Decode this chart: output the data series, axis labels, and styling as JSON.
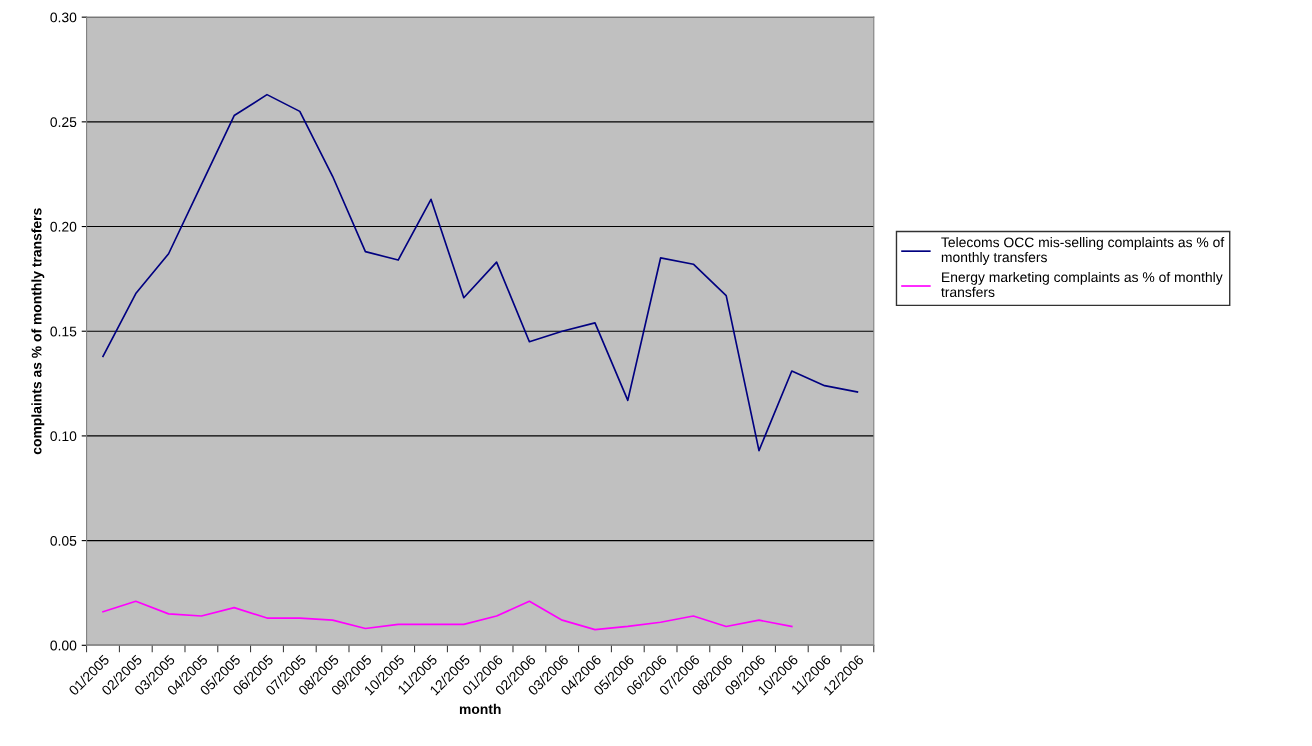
{
  "chart_data": {
    "type": "line",
    "xlabel": "month",
    "ylabel": "complaints as % of monthly transfers",
    "categories": [
      "01/2005",
      "02/2005",
      "03/2005",
      "04/2005",
      "05/2005",
      "06/2005",
      "07/2005",
      "08/2005",
      "09/2005",
      "10/2005",
      "11/2005",
      "12/2005",
      "01/2006",
      "02/2006",
      "03/2006",
      "04/2006",
      "05/2006",
      "06/2006",
      "07/2006",
      "08/2006",
      "09/2006",
      "10/2006",
      "11/2006",
      "12/2006"
    ],
    "series": [
      {
        "name": "Telecoms OCC mis-selling complaints as % of monthly transfers",
        "color": "#000080",
        "values": [
          0.138,
          0.168,
          0.187,
          0.22,
          0.253,
          0.263,
          0.255,
          0.224,
          0.188,
          0.184,
          0.213,
          0.166,
          0.183,
          0.145,
          0.15,
          0.154,
          0.117,
          0.185,
          0.182,
          0.167,
          0.093,
          0.131,
          0.124,
          0.121
        ]
      },
      {
        "name": "Energy marketing complaints as % of monthly transfers",
        "color": "#ff00ff",
        "values": [
          0.016,
          0.021,
          0.015,
          0.014,
          0.018,
          0.013,
          0.013,
          0.012,
          0.008,
          0.01,
          0.01,
          0.01,
          0.014,
          0.021,
          0.012,
          0.0075,
          0.009,
          0.011,
          0.014,
          0.009,
          0.012,
          0.009,
          null,
          null
        ]
      }
    ],
    "ylim": [
      0,
      0.3
    ],
    "yticks": [
      {
        "value": 0,
        "label": "0.00"
      },
      {
        "value": 0.05,
        "label": "0.05"
      },
      {
        "value": 0.1,
        "label": "0.10"
      },
      {
        "value": 0.15,
        "label": "0.15"
      },
      {
        "value": 0.2,
        "label": "0.20"
      },
      {
        "value": 0.25,
        "label": "0.25"
      },
      {
        "value": 0.3,
        "label": "0.30"
      }
    ],
    "grid": "y",
    "legend": "right",
    "marker": "none",
    "line_style": "solid"
  }
}
